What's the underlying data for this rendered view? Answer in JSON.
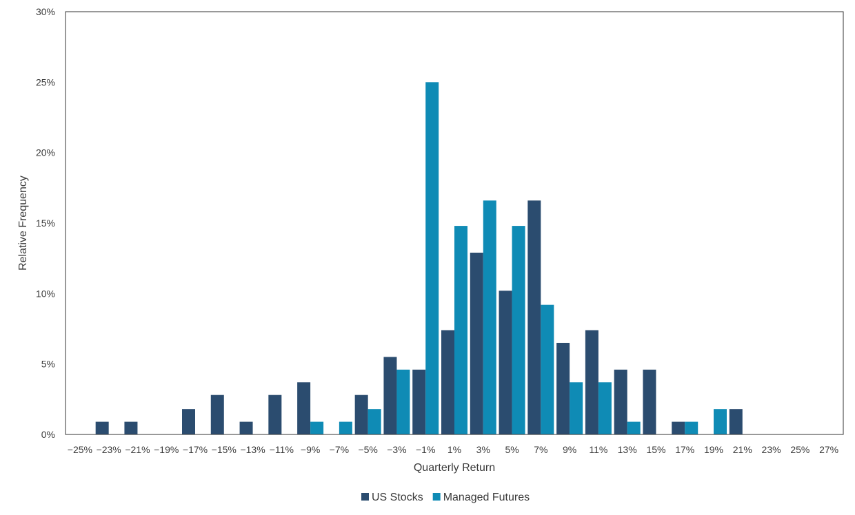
{
  "chart_data": {
    "type": "bar",
    "xlabel": "Quarterly Return",
    "ylabel": "Relative Frequency",
    "ylim": [
      0,
      30
    ],
    "yticks": [
      "0%",
      "5%",
      "10%",
      "15%",
      "20%",
      "25%",
      "30%"
    ],
    "categories": [
      "−25%",
      "−23%",
      "−21%",
      "−19%",
      "−17%",
      "−15%",
      "−13%",
      "−11%",
      "−9%",
      "−7%",
      "−5%",
      "−3%",
      "−1%",
      "1%",
      "3%",
      "5%",
      "7%",
      "9%",
      "11%",
      "13%",
      "15%",
      "17%",
      "19%",
      "21%",
      "23%",
      "25%",
      "27%"
    ],
    "grid": false,
    "legend_position": "bottom",
    "series": [
      {
        "name": "US Stocks",
        "color": "#2b4c6f",
        "values": [
          0,
          0.9,
          0.9,
          0,
          1.8,
          2.8,
          0.9,
          2.8,
          3.7,
          0,
          2.8,
          5.5,
          4.6,
          7.4,
          12.9,
          10.2,
          16.6,
          6.5,
          7.4,
          4.6,
          4.6,
          0.9,
          0,
          1.8,
          0,
          0,
          0
        ]
      },
      {
        "name": "Managed Futures",
        "color": "#0f8bb5",
        "values": [
          0,
          0,
          0,
          0,
          0,
          0,
          0,
          0,
          0.9,
          0.9,
          1.8,
          4.6,
          25.0,
          14.8,
          16.6,
          14.8,
          9.2,
          3.7,
          3.7,
          0.9,
          0,
          0.9,
          1.8,
          0,
          0,
          0,
          0
        ]
      }
    ]
  }
}
